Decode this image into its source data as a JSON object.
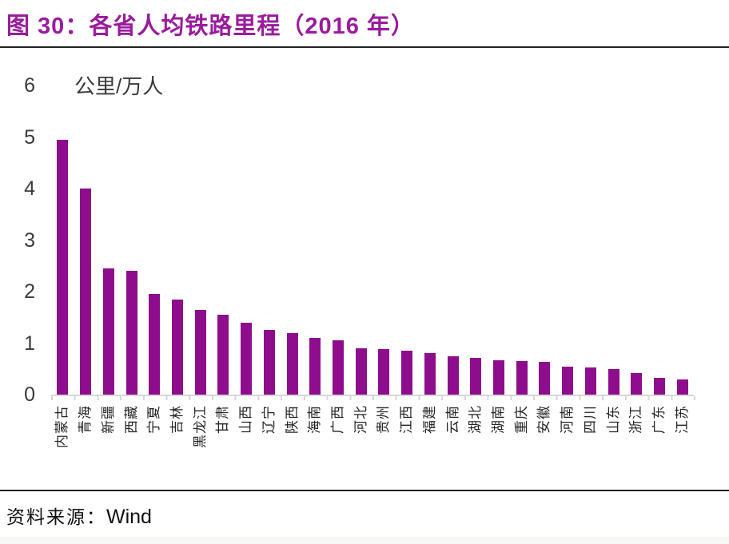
{
  "header": {
    "title": "图 30：各省人均铁路里程（2016 年）"
  },
  "theme": {
    "title_color": "#9B1B9E",
    "bar_color": "#8E0D8C",
    "axis_line_color": "#d7d7d7",
    "rule_color": "#222222"
  },
  "chart_data": {
    "type": "bar",
    "title": "各省人均铁路里程（2016 年）",
    "unit_label": "公里/万人",
    "categories": [
      "内蒙古",
      "青海",
      "新疆",
      "西藏",
      "宁夏",
      "吉林",
      "黑龙江",
      "甘肃",
      "山西",
      "辽宁",
      "陕西",
      "海南",
      "广西",
      "河北",
      "贵州",
      "江西",
      "福建",
      "云南",
      "湖北",
      "湖南",
      "重庆",
      "安徽",
      "河南",
      "四川",
      "山东",
      "浙江",
      "广东",
      "江苏"
    ],
    "values": [
      4.95,
      4.0,
      2.45,
      2.4,
      1.95,
      1.85,
      1.65,
      1.55,
      1.4,
      1.25,
      1.2,
      1.1,
      1.05,
      0.9,
      0.88,
      0.85,
      0.8,
      0.75,
      0.72,
      0.66,
      0.65,
      0.64,
      0.55,
      0.53,
      0.5,
      0.42,
      0.33,
      0.3
    ],
    "ylabel": "",
    "xlabel": "",
    "ylim": [
      0,
      6
    ],
    "yticks": [
      0,
      1,
      2,
      3,
      4,
      5,
      6
    ],
    "grid": "off",
    "legend": "none",
    "x_label_rotation": -90
  },
  "footer": {
    "source_prefix": "资料来源：",
    "source_name": "Wind"
  }
}
